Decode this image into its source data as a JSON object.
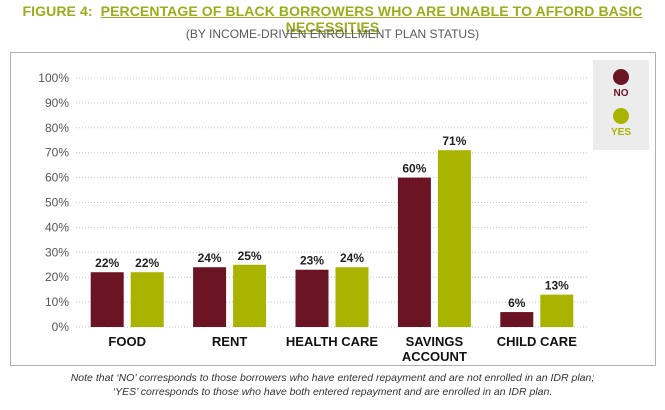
{
  "header": {
    "figure_label": "FIGURE 4:",
    "title": "PERCENTAGE OF BLACK BORROWERS WHO ARE UNABLE TO AFFORD BASIC NECESSITIES",
    "subtitle": "(BY INCOME-DRIVEN ENROLLMENT PLAN STATUS)"
  },
  "note": {
    "line1": "Note that ‘NO’ corresponds to those borrowers who have entered repayment and are not enrolled in an IDR plan;",
    "line2": "‘YES’ corresponds to those who have both entered repayment and are enrolled in an IDR plan."
  },
  "colors": {
    "no": "#6b1424",
    "yes": "#a8b400",
    "title": "#9aad1a"
  },
  "chart_data": {
    "type": "bar",
    "categories": [
      "FOOD",
      "RENT",
      "HEALTH CARE",
      "SAVINGS\nACCOUNT",
      "CHILD CARE"
    ],
    "series": [
      {
        "name": "NO",
        "values": [
          22,
          24,
          23,
          60,
          6
        ]
      },
      {
        "name": "YES",
        "values": [
          22,
          25,
          24,
          71,
          13
        ]
      }
    ],
    "value_labels": [
      [
        "22%",
        "24%",
        "23%",
        "60%",
        "6%"
      ],
      [
        "22%",
        "25%",
        "24%",
        "71%",
        "13%"
      ]
    ],
    "y_ticks": [
      "0%",
      "10%",
      "20%",
      "30%",
      "40%",
      "50%",
      "60%",
      "70%",
      "80%",
      "90%",
      "100%"
    ],
    "ylim": [
      0,
      100
    ],
    "grid": true,
    "legend_position": "top-right"
  }
}
